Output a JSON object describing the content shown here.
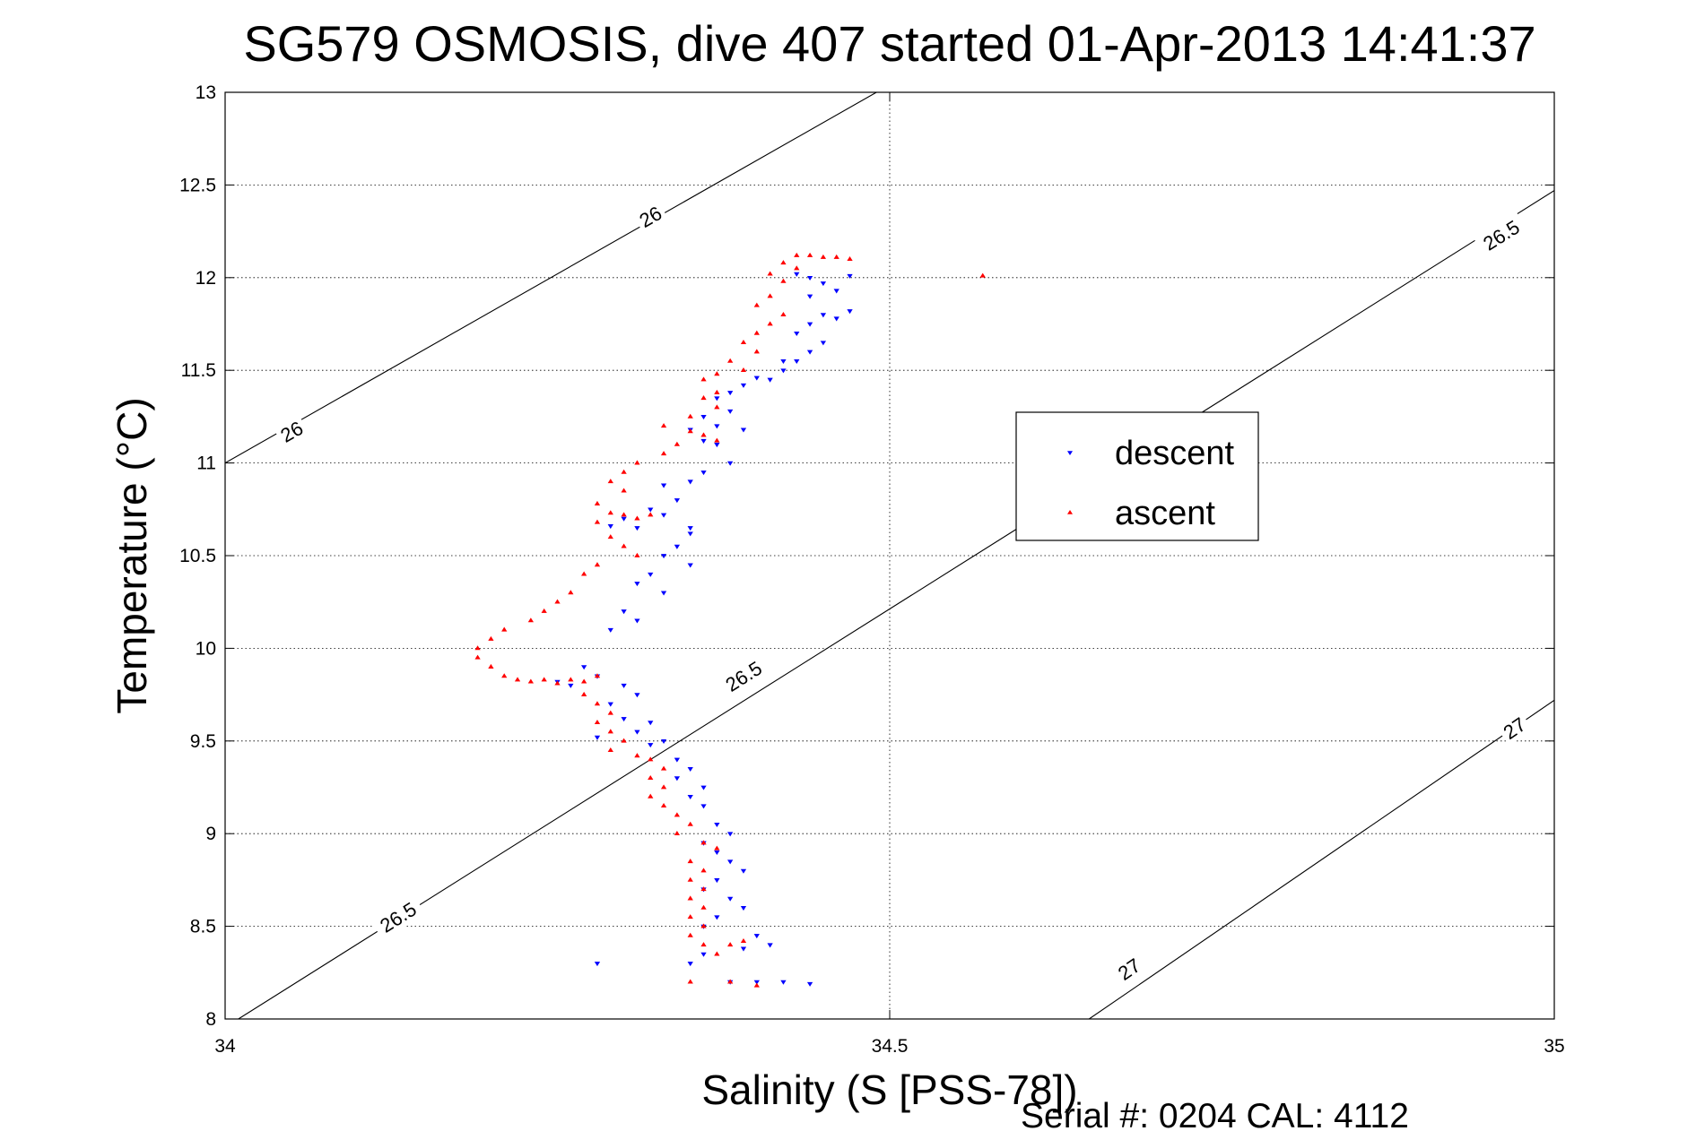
{
  "chart_data": {
    "type": "scatter",
    "title": "SG579 OSMOSIS, dive 407 started 01-Apr-2013 14:41:37",
    "xlabel": "Salinity (S [PSS-78])",
    "ylabel": "Temperature (°C)",
    "footer": "Serial #: 0204  CAL: 4112",
    "xlim": [
      34,
      35
    ],
    "ylim": [
      8,
      13
    ],
    "xticks": [
      "34",
      "34.5",
      "35"
    ],
    "yticks": [
      "8",
      "8.5",
      "9",
      "9.5",
      "10",
      "10.5",
      "11",
      "11.5",
      "12",
      "12.5",
      "13"
    ],
    "grid": true,
    "legend": {
      "placement": "right",
      "entries": [
        {
          "name": "descent",
          "color": "#0000ff",
          "marker": "triangle-down"
        },
        {
          "name": "ascent",
          "color": "#ff0000",
          "marker": "triangle-up"
        }
      ]
    },
    "density_contours": [
      {
        "label": "26",
        "points": [
          [
            34.0,
            11.0
          ],
          [
            34.49,
            13.0
          ]
        ]
      },
      {
        "label": "26.5",
        "points": [
          [
            34.01,
            8.0
          ],
          [
            35.0,
            12.47
          ]
        ]
      },
      {
        "label": "27",
        "points": [
          [
            34.65,
            8.0
          ],
          [
            35.0,
            9.72
          ]
        ]
      }
    ],
    "contour_labels": [
      {
        "text": "26",
        "x": 34.32,
        "y": 12.33
      },
      {
        "text": "26",
        "x": 34.05,
        "y": 11.17
      },
      {
        "text": "26.5",
        "x": 34.96,
        "y": 12.23
      },
      {
        "text": "26.5",
        "x": 34.39,
        "y": 9.85
      },
      {
        "text": "26.5",
        "x": 34.13,
        "y": 8.55
      },
      {
        "text": "27",
        "x": 34.97,
        "y": 9.57
      },
      {
        "text": "27",
        "x": 34.68,
        "y": 8.27
      }
    ],
    "series": [
      {
        "name": "descent",
        "color": "#0000ff",
        "marker": "triangle-down",
        "points": [
          [
            34.43,
            12.02
          ],
          [
            34.44,
            12.0
          ],
          [
            34.45,
            11.97
          ],
          [
            34.46,
            11.93
          ],
          [
            34.47,
            12.01
          ],
          [
            34.44,
            11.9
          ],
          [
            34.45,
            11.8
          ],
          [
            34.46,
            11.78
          ],
          [
            34.47,
            11.82
          ],
          [
            34.44,
            11.75
          ],
          [
            34.43,
            11.7
          ],
          [
            34.45,
            11.65
          ],
          [
            34.44,
            11.6
          ],
          [
            34.43,
            11.55
          ],
          [
            34.42,
            11.5
          ],
          [
            34.41,
            11.45
          ],
          [
            34.42,
            11.55
          ],
          [
            34.4,
            11.46
          ],
          [
            34.39,
            11.42
          ],
          [
            34.38,
            11.38
          ],
          [
            34.37,
            11.35
          ],
          [
            34.38,
            11.28
          ],
          [
            34.36,
            11.25
          ],
          [
            34.37,
            11.2
          ],
          [
            34.39,
            11.18
          ],
          [
            34.35,
            11.18
          ],
          [
            34.36,
            11.12
          ],
          [
            34.37,
            11.1
          ],
          [
            34.38,
            11.0
          ],
          [
            34.36,
            10.95
          ],
          [
            34.35,
            10.9
          ],
          [
            34.33,
            10.88
          ],
          [
            34.34,
            10.8
          ],
          [
            34.32,
            10.75
          ],
          [
            34.33,
            10.72
          ],
          [
            34.3,
            10.7
          ],
          [
            34.29,
            10.66
          ],
          [
            34.31,
            10.65
          ],
          [
            34.35,
            10.62
          ],
          [
            34.34,
            10.55
          ],
          [
            34.33,
            10.5
          ],
          [
            34.35,
            10.45
          ],
          [
            34.32,
            10.4
          ],
          [
            34.31,
            10.35
          ],
          [
            34.33,
            10.3
          ],
          [
            34.3,
            10.2
          ],
          [
            34.31,
            10.15
          ],
          [
            34.29,
            10.1
          ],
          [
            34.27,
            9.9
          ],
          [
            34.28,
            9.85
          ],
          [
            34.3,
            9.8
          ],
          [
            34.31,
            9.75
          ],
          [
            34.29,
            9.7
          ],
          [
            34.3,
            9.62
          ],
          [
            34.32,
            9.6
          ],
          [
            34.31,
            9.55
          ],
          [
            34.32,
            9.48
          ],
          [
            34.34,
            9.4
          ],
          [
            34.35,
            9.35
          ],
          [
            34.34,
            9.3
          ],
          [
            34.36,
            9.25
          ],
          [
            34.35,
            9.2
          ],
          [
            34.36,
            9.15
          ],
          [
            34.37,
            9.05
          ],
          [
            34.38,
            9.0
          ],
          [
            34.36,
            8.95
          ],
          [
            34.37,
            8.9
          ],
          [
            34.38,
            8.85
          ],
          [
            34.39,
            8.8
          ],
          [
            34.37,
            8.75
          ],
          [
            34.36,
            8.7
          ],
          [
            34.38,
            8.65
          ],
          [
            34.39,
            8.6
          ],
          [
            34.37,
            8.55
          ],
          [
            34.36,
            8.5
          ],
          [
            34.4,
            8.45
          ],
          [
            34.41,
            8.4
          ],
          [
            34.39,
            8.38
          ],
          [
            34.36,
            8.35
          ],
          [
            34.35,
            8.3
          ],
          [
            34.28,
            8.3
          ],
          [
            34.38,
            8.2
          ],
          [
            34.4,
            8.2
          ],
          [
            34.42,
            8.2
          ],
          [
            34.44,
            8.19
          ],
          [
            34.33,
            9.5
          ],
          [
            34.28,
            9.52
          ],
          [
            34.35,
            10.65
          ],
          [
            34.26,
            9.8
          ],
          [
            34.25,
            9.82
          ]
        ]
      },
      {
        "name": "ascent",
        "color": "#ff0000",
        "marker": "triangle-up",
        "points": [
          [
            34.43,
            12.12
          ],
          [
            34.44,
            12.12
          ],
          [
            34.45,
            12.11
          ],
          [
            34.46,
            12.11
          ],
          [
            34.47,
            12.1
          ],
          [
            34.42,
            12.08
          ],
          [
            34.43,
            12.05
          ],
          [
            34.41,
            12.02
          ],
          [
            34.42,
            11.98
          ],
          [
            34.41,
            11.9
          ],
          [
            34.4,
            11.85
          ],
          [
            34.42,
            11.8
          ],
          [
            34.41,
            11.75
          ],
          [
            34.4,
            11.7
          ],
          [
            34.39,
            11.65
          ],
          [
            34.4,
            11.6
          ],
          [
            34.38,
            11.55
          ],
          [
            34.39,
            11.5
          ],
          [
            34.37,
            11.48
          ],
          [
            34.36,
            11.45
          ],
          [
            34.37,
            11.38
          ],
          [
            34.36,
            11.35
          ],
          [
            34.37,
            11.3
          ],
          [
            34.35,
            11.25
          ],
          [
            34.33,
            11.2
          ],
          [
            34.35,
            11.17
          ],
          [
            34.36,
            11.15
          ],
          [
            34.37,
            11.12
          ],
          [
            34.34,
            11.1
          ],
          [
            34.33,
            11.05
          ],
          [
            34.31,
            11.0
          ],
          [
            34.3,
            10.95
          ],
          [
            34.29,
            10.9
          ],
          [
            34.3,
            10.85
          ],
          [
            34.28,
            10.78
          ],
          [
            34.29,
            10.73
          ],
          [
            34.3,
            10.72
          ],
          [
            34.31,
            10.7
          ],
          [
            34.32,
            10.72
          ],
          [
            34.28,
            10.68
          ],
          [
            34.29,
            10.6
          ],
          [
            34.3,
            10.55
          ],
          [
            34.31,
            10.5
          ],
          [
            34.28,
            10.45
          ],
          [
            34.27,
            10.4
          ],
          [
            34.26,
            10.3
          ],
          [
            34.25,
            10.25
          ],
          [
            34.24,
            10.2
          ],
          [
            34.23,
            10.15
          ],
          [
            34.21,
            10.1
          ],
          [
            34.2,
            10.05
          ],
          [
            34.19,
            10.0
          ],
          [
            34.19,
            9.95
          ],
          [
            34.2,
            9.9
          ],
          [
            34.21,
            9.85
          ],
          [
            34.22,
            9.83
          ],
          [
            34.23,
            9.82
          ],
          [
            34.24,
            9.83
          ],
          [
            34.25,
            9.81
          ],
          [
            34.26,
            9.83
          ],
          [
            34.27,
            9.82
          ],
          [
            34.28,
            9.85
          ],
          [
            34.27,
            9.75
          ],
          [
            34.28,
            9.7
          ],
          [
            34.29,
            9.65
          ],
          [
            34.28,
            9.6
          ],
          [
            34.29,
            9.55
          ],
          [
            34.3,
            9.5
          ],
          [
            34.29,
            9.45
          ],
          [
            34.31,
            9.42
          ],
          [
            34.32,
            9.4
          ],
          [
            34.33,
            9.35
          ],
          [
            34.32,
            9.3
          ],
          [
            34.33,
            9.25
          ],
          [
            34.32,
            9.2
          ],
          [
            34.33,
            9.15
          ],
          [
            34.34,
            9.1
          ],
          [
            34.35,
            9.05
          ],
          [
            34.34,
            9.0
          ],
          [
            34.36,
            8.95
          ],
          [
            34.37,
            8.92
          ],
          [
            34.35,
            8.85
          ],
          [
            34.36,
            8.8
          ],
          [
            34.35,
            8.75
          ],
          [
            34.36,
            8.7
          ],
          [
            34.35,
            8.65
          ],
          [
            34.36,
            8.6
          ],
          [
            34.35,
            8.55
          ],
          [
            34.36,
            8.5
          ],
          [
            34.35,
            8.45
          ],
          [
            34.36,
            8.4
          ],
          [
            34.37,
            8.35
          ],
          [
            34.38,
            8.4
          ],
          [
            34.39,
            8.42
          ],
          [
            34.38,
            8.2
          ],
          [
            34.4,
            8.18
          ],
          [
            34.35,
            8.2
          ],
          [
            34.57,
            12.01
          ]
        ]
      }
    ]
  }
}
